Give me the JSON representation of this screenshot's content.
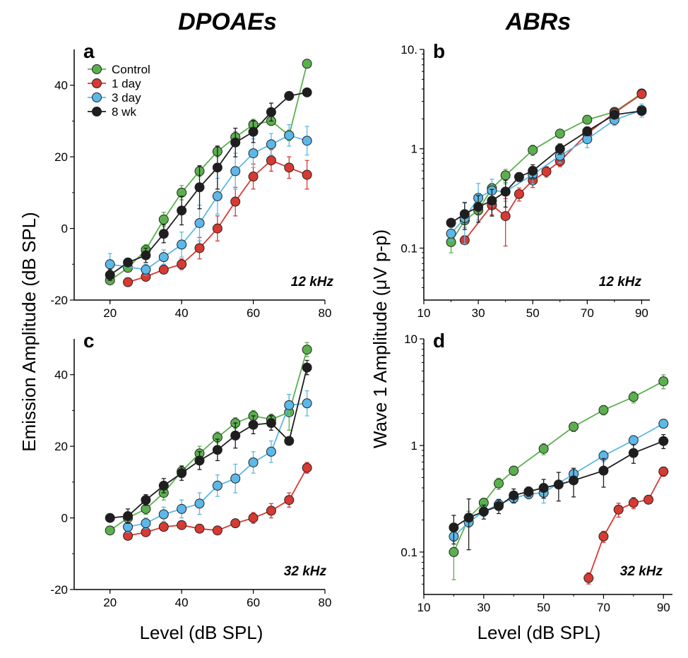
{
  "colors": {
    "Control": "#5bb04e",
    "1 day": "#d63a32",
    "3 day": "#5cb8e8",
    "8 wk": "#1e1e1e"
  },
  "titles": {
    "left": "DPOAEs",
    "right": "ABRs"
  },
  "axis_labels": {
    "left_y": "Emission Amplitude (dB SPL)",
    "right_y": "Wave 1 Amplitude (μV p-p)",
    "left_x": "Level (dB SPL)",
    "right_x": "Level (dB SPL)"
  },
  "legend": [
    "Control",
    "1 day",
    "3 day",
    "8 wk"
  ],
  "chart_data": [
    {
      "id": "a",
      "type": "line",
      "panel_label": "a",
      "freq_label": "12 kHz",
      "xlim": [
        10,
        80
      ],
      "ylim": [
        -20,
        50
      ],
      "yscale": "linear",
      "xticks": [
        20,
        40,
        60,
        80
      ],
      "yticks": [
        -20,
        0,
        20,
        40
      ],
      "series": [
        {
          "name": "Control",
          "x": [
            20,
            25,
            30,
            35,
            40,
            45,
            50,
            55,
            60,
            65,
            70,
            75
          ],
          "y": [
            -14.5,
            -11,
            -6,
            2.5,
            10,
            16,
            21.5,
            25.5,
            29,
            30,
            26,
            46
          ],
          "err": [
            0,
            0,
            1.5,
            2,
            2,
            1.5,
            1.5,
            1.5,
            1.5,
            0,
            1.5,
            0
          ]
        },
        {
          "name": "1 day",
          "x": [
            25,
            30,
            35,
            40,
            45,
            50,
            55,
            60,
            65,
            70,
            75
          ],
          "y": [
            -15,
            -13.5,
            -11.5,
            -10,
            -5.5,
            0,
            7.5,
            14.5,
            19,
            17,
            15
          ],
          "err": [
            0,
            0,
            1,
            1.5,
            3,
            3.5,
            4,
            3.5,
            3,
            3,
            4
          ]
        },
        {
          "name": "3 day",
          "x": [
            20,
            30,
            35,
            40,
            45,
            50,
            55,
            60,
            65,
            70,
            75
          ],
          "y": [
            -10,
            -11.5,
            -8,
            -4.5,
            1.5,
            9,
            16,
            21,
            23.5,
            26,
            24.5
          ],
          "err": [
            3,
            1.5,
            2,
            3.5,
            5,
            5,
            5,
            4,
            3,
            3,
            4
          ]
        },
        {
          "name": "8 wk",
          "x": [
            20,
            25,
            30,
            35,
            40,
            45,
            50,
            55,
            60,
            65,
            70,
            75
          ],
          "y": [
            -13,
            -9.5,
            -7.5,
            -1.5,
            5,
            11.5,
            17,
            24,
            27,
            32.5,
            37,
            38
          ],
          "err": [
            1.5,
            1,
            2,
            2.5,
            4,
            6,
            6,
            4,
            3,
            2.5,
            0,
            0
          ]
        }
      ]
    },
    {
      "id": "b",
      "type": "line",
      "panel_label": "b",
      "freq_label": "12 kHz",
      "xlim": [
        10,
        93
      ],
      "ylim": [
        0.03,
        10
      ],
      "yscale": "log",
      "xticks": [
        10,
        30,
        50,
        70,
        90
      ],
      "yticks": [
        0.1,
        1,
        10
      ],
      "ytick_labels": [
        "0.1",
        "1",
        "10."
      ],
      "series": [
        {
          "name": "Control",
          "x": [
            20,
            25,
            30,
            35,
            40,
            50,
            60,
            70,
            80,
            90
          ],
          "y": [
            0.115,
            0.19,
            0.24,
            0.4,
            0.54,
            0.97,
            1.42,
            1.96,
            2.35,
            3.6
          ],
          "err_frac": [
            0.22,
            0.15,
            0.1,
            0.12,
            0.15,
            0.12,
            0.06,
            0.06,
            0.06,
            0.05
          ]
        },
        {
          "name": "1 day",
          "x": [
            25,
            35,
            40,
            45,
            50,
            55,
            60,
            70,
            80,
            90
          ],
          "y": [
            0.12,
            0.27,
            0.21,
            0.35,
            0.48,
            0.59,
            0.75,
            1.42,
            2.3,
            3.55
          ],
          "err_frac": [
            0,
            0.2,
            0.5,
            0.15,
            0.15,
            0.12,
            0.12,
            0.1,
            0.08,
            0.06
          ]
        },
        {
          "name": "3 day",
          "x": [
            20,
            25,
            30,
            35,
            40,
            50,
            60,
            70,
            80,
            90
          ],
          "y": [
            0.14,
            0.2,
            0.32,
            0.38,
            0.37,
            0.55,
            0.85,
            1.25,
            1.95,
            2.45
          ],
          "err_frac": [
            0.15,
            0.45,
            0.4,
            0.3,
            0.2,
            0.2,
            0.15,
            0.18,
            0.12,
            0.15
          ]
        },
        {
          "name": "8 wk",
          "x": [
            20,
            25,
            30,
            35,
            40,
            45,
            50,
            60,
            70,
            80,
            90
          ],
          "y": [
            0.18,
            0.22,
            0.26,
            0.3,
            0.37,
            0.52,
            0.6,
            1.0,
            1.5,
            2.2,
            2.4
          ],
          "err_frac": [
            0,
            0.3,
            0.3,
            0.3,
            0.3,
            0.1,
            0.15,
            0.12,
            0.1,
            0.08,
            0.06
          ]
        }
      ]
    },
    {
      "id": "c",
      "type": "line",
      "panel_label": "c",
      "freq_label": "32 kHz",
      "xlim": [
        10,
        80
      ],
      "ylim": [
        -20,
        50
      ],
      "yscale": "linear",
      "xticks": [
        20,
        40,
        60,
        80
      ],
      "yticks": [
        -20,
        0,
        20,
        40
      ],
      "series": [
        {
          "name": "Control",
          "x": [
            20,
            25,
            30,
            35,
            40,
            45,
            50,
            55,
            60,
            65,
            70,
            75
          ],
          "y": [
            -3.5,
            0,
            2.5,
            7,
            13,
            18,
            22.5,
            26.5,
            28.5,
            27.5,
            29.5,
            47
          ],
          "err": [
            0,
            1.5,
            1.5,
            2,
            1.5,
            2,
            1.5,
            1.5,
            1.5,
            1.5,
            5,
            2
          ]
        },
        {
          "name": "1 day",
          "x": [
            25,
            30,
            35,
            40,
            45,
            50,
            55,
            60,
            65,
            70,
            75
          ],
          "y": [
            -5,
            -4,
            -2.5,
            -2,
            -3,
            -3.5,
            -1.5,
            0,
            2,
            5,
            14
          ],
          "err": [
            0,
            0,
            0,
            0,
            0,
            0,
            0,
            1.5,
            2,
            2,
            1.5
          ]
        },
        {
          "name": "3 day",
          "x": [
            25,
            30,
            35,
            40,
            45,
            50,
            55,
            60,
            65,
            70,
            75
          ],
          "y": [
            -2.5,
            -1.5,
            1,
            2.5,
            4,
            9,
            11,
            15.5,
            18.5,
            31.5,
            32
          ],
          "err": [
            1.5,
            1.5,
            2,
            2.5,
            3,
            3,
            4,
            3,
            3,
            3,
            3.5
          ]
        },
        {
          "name": "8 wk",
          "x": [
            20,
            25,
            30,
            35,
            40,
            45,
            50,
            55,
            60,
            65,
            70,
            75
          ],
          "y": [
            0,
            0.5,
            5,
            9,
            12.5,
            16,
            19,
            23,
            26,
            26.5,
            21.5,
            42
          ],
          "err": [
            0,
            2,
            1.5,
            2,
            2,
            2.5,
            3,
            3.5,
            2.5,
            2,
            0,
            2
          ]
        }
      ]
    },
    {
      "id": "d",
      "type": "line",
      "panel_label": "d",
      "freq_label": "32 kHz",
      "xlim": [
        10,
        93
      ],
      "ylim": [
        0.04,
        10
      ],
      "yscale": "log",
      "xticks": [
        10,
        30,
        50,
        70,
        90
      ],
      "yticks": [
        0.1,
        1,
        10
      ],
      "ytick_labels": [
        "0.1",
        "1",
        "10"
      ],
      "series": [
        {
          "name": "Control",
          "x": [
            20,
            25,
            30,
            35,
            40,
            50,
            60,
            70,
            80,
            90
          ],
          "y": [
            0.1,
            0.21,
            0.29,
            0.44,
            0.58,
            0.93,
            1.5,
            2.15,
            2.85,
            4.0
          ],
          "err_frac": [
            0.45,
            0.15,
            0.1,
            0.12,
            0.1,
            0.12,
            0.1,
            0.1,
            0.12,
            0.15
          ]
        },
        {
          "name": "1 day",
          "x": [
            65,
            70,
            75,
            80,
            85,
            90
          ],
          "y": [
            0.057,
            0.14,
            0.25,
            0.29,
            0.31,
            0.57
          ],
          "err_frac": [
            0.12,
            0.12,
            0.15,
            0.12,
            0.05,
            0.1
          ]
        },
        {
          "name": "3 day",
          "x": [
            20,
            25,
            30,
            35,
            40,
            45,
            50,
            60,
            70,
            80,
            90
          ],
          "y": [
            0.14,
            0.19,
            0.24,
            0.28,
            0.32,
            0.35,
            0.36,
            0.54,
            0.8,
            1.12,
            1.6
          ],
          "err_frac": [
            0.1,
            0.1,
            0.1,
            0.12,
            0.1,
            0.1,
            0.2,
            0.1,
            0.12,
            0.1,
            0.06
          ]
        },
        {
          "name": "8 wk",
          "x": [
            20,
            25,
            30,
            35,
            40,
            45,
            50,
            55,
            60,
            70,
            80,
            90
          ],
          "y": [
            0.17,
            0.21,
            0.24,
            0.27,
            0.34,
            0.37,
            0.4,
            0.43,
            0.47,
            0.58,
            0.85,
            1.1
          ],
          "err_frac": [
            0.3,
            0.5,
            0.15,
            0.15,
            0.15,
            0.1,
            0.2,
            0.3,
            0.3,
            0.3,
            0.2,
            0.15
          ]
        }
      ]
    }
  ]
}
